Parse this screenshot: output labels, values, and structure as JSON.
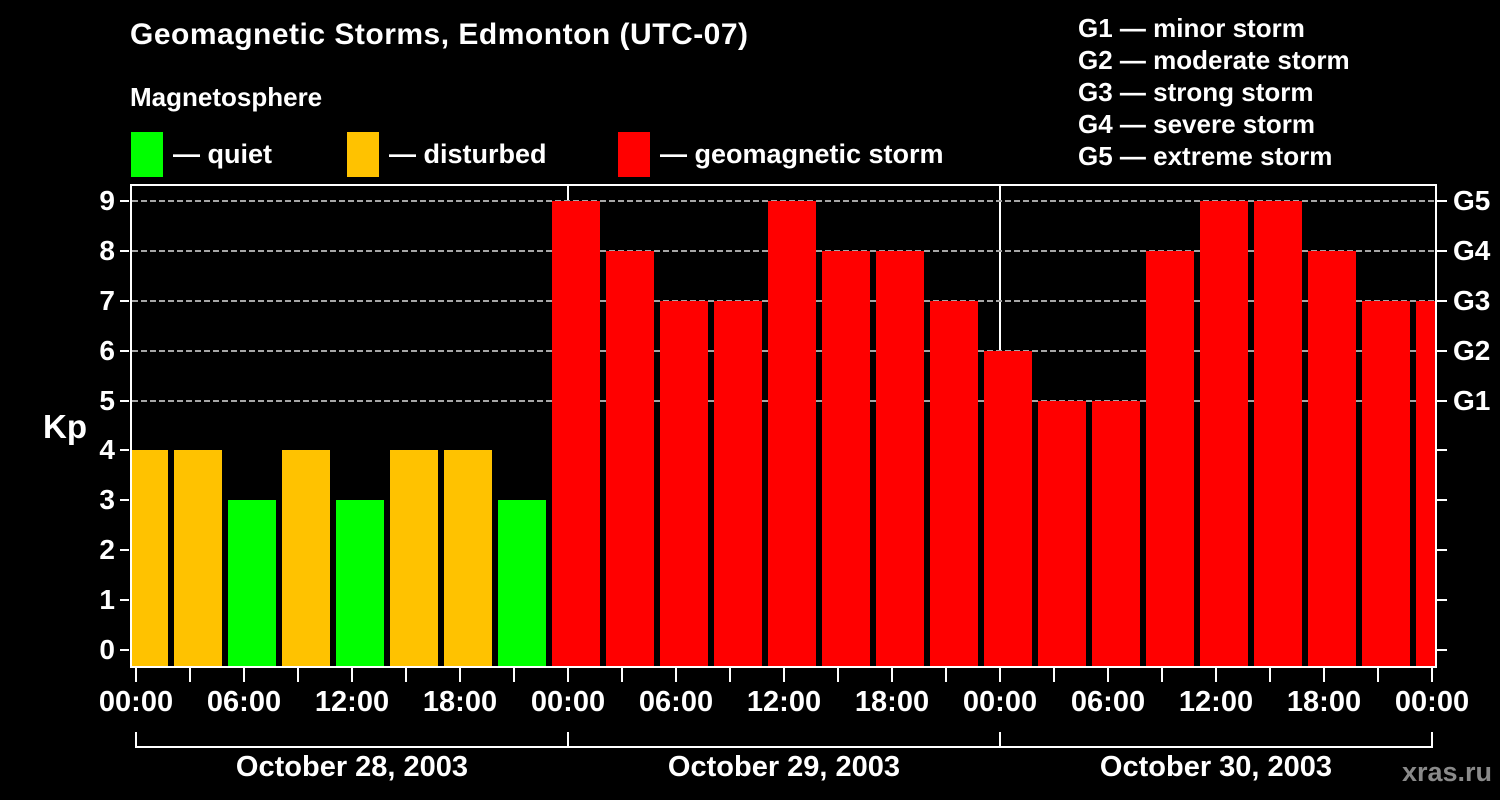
{
  "header": {
    "title": "Geomagnetic Storms, Edmonton (UTC-07)",
    "subtitle": "Magnetosphere"
  },
  "state_legend": {
    "items": [
      {
        "state": "quiet",
        "label": "— quiet",
        "color": "#00ff00"
      },
      {
        "state": "disturbed",
        "label": "— disturbed",
        "color": "#ffc200"
      },
      {
        "state": "storm",
        "label": "— geomagnetic storm",
        "color": "#ff0000"
      }
    ]
  },
  "g_legend": {
    "lines": [
      "G1 — minor storm",
      "G2 — moderate storm",
      "G3 — strong storm",
      "G4 — severe storm",
      "G5 — extreme storm"
    ]
  },
  "watermark": "xras.ru",
  "chart_data": {
    "type": "bar",
    "title": "Geomagnetic Storms, Edmonton (UTC-07)",
    "xlabel": "",
    "ylabel": "Kp",
    "ylim": [
      0,
      9
    ],
    "grid": "dashed horizontal at Kp 5-9",
    "y_ticks": [
      0,
      1,
      2,
      3,
      4,
      5,
      6,
      7,
      8,
      9
    ],
    "g_scale": [
      {
        "label": "G5",
        "kp": 9
      },
      {
        "label": "G4",
        "kp": 8
      },
      {
        "label": "G3",
        "kp": 7
      },
      {
        "label": "G2",
        "kp": 6
      },
      {
        "label": "G1",
        "kp": 5
      }
    ],
    "x_tick_labels": [
      "00:00",
      "06:00",
      "12:00",
      "18:00",
      "00:00",
      "06:00",
      "12:00",
      "18:00",
      "00:00",
      "06:00",
      "12:00",
      "18:00",
      "00:00"
    ],
    "days": [
      "October 28, 2003",
      "October 29, 2003",
      "October 30, 2003"
    ],
    "colors": {
      "quiet": "#00ff00",
      "disturbed": "#ffc200",
      "storm": "#ff0000"
    },
    "bars": [
      {
        "kp": 4,
        "state": "disturbed"
      },
      {
        "kp": 4,
        "state": "disturbed"
      },
      {
        "kp": 3,
        "state": "quiet"
      },
      {
        "kp": 4,
        "state": "disturbed"
      },
      {
        "kp": 3,
        "state": "quiet"
      },
      {
        "kp": 4,
        "state": "disturbed"
      },
      {
        "kp": 4,
        "state": "disturbed"
      },
      {
        "kp": 3,
        "state": "quiet"
      },
      {
        "kp": 9,
        "state": "storm"
      },
      {
        "kp": 8,
        "state": "storm"
      },
      {
        "kp": 7,
        "state": "storm"
      },
      {
        "kp": 7,
        "state": "storm"
      },
      {
        "kp": 9,
        "state": "storm"
      },
      {
        "kp": 8,
        "state": "storm"
      },
      {
        "kp": 8,
        "state": "storm"
      },
      {
        "kp": 7,
        "state": "storm"
      },
      {
        "kp": 6,
        "state": "storm"
      },
      {
        "kp": 5,
        "state": "storm"
      },
      {
        "kp": 5,
        "state": "storm"
      },
      {
        "kp": 8,
        "state": "storm"
      },
      {
        "kp": 9,
        "state": "storm"
      },
      {
        "kp": 9,
        "state": "storm"
      },
      {
        "kp": 8,
        "state": "storm"
      },
      {
        "kp": 7,
        "state": "storm"
      },
      {
        "kp": 7,
        "state": "storm"
      }
    ]
  }
}
